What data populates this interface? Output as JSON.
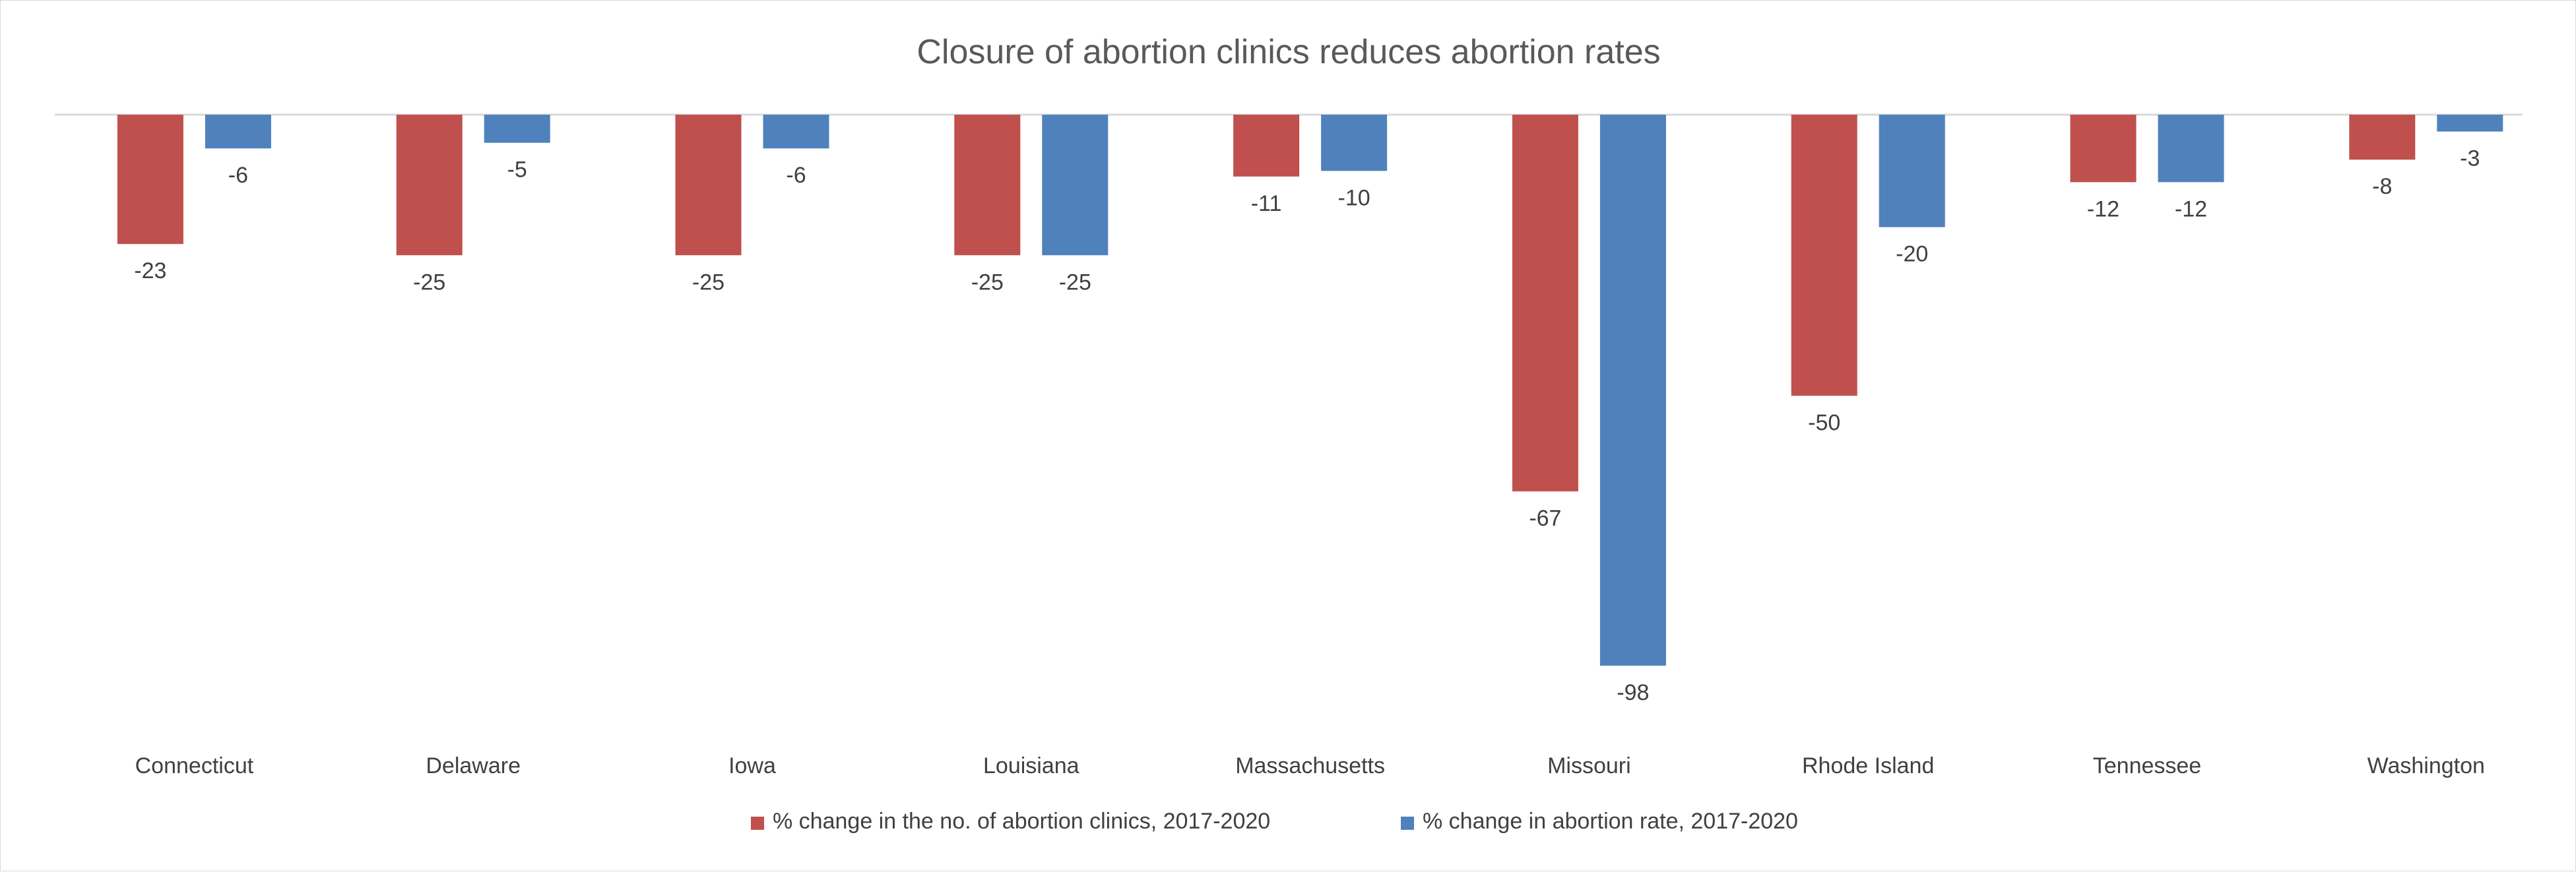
{
  "chart_data": {
    "type": "bar",
    "title": "Closure of abortion clinics reduces abortion rates",
    "categories": [
      "Connecticut",
      "Delaware",
      "Iowa",
      "Louisiana",
      "Massachusetts",
      "Missouri",
      "Rhode Island",
      "Tennessee",
      "Washington"
    ],
    "series": [
      {
        "name": "% change in the no. of abortion clinics, 2017-2020",
        "color": "#c0504d",
        "values": [
          -23,
          -25,
          -25,
          -25,
          -11,
          -67,
          -50,
          -12,
          -8
        ]
      },
      {
        "name": "% change in abortion rate, 2017-2020",
        "color": "#4f81bd",
        "values": [
          -6,
          -5,
          -6,
          -25,
          -10,
          -98,
          -20,
          -12,
          -3
        ]
      }
    ],
    "ylim": [
      -98,
      0
    ],
    "grid": false,
    "legend_position": "bottom"
  }
}
